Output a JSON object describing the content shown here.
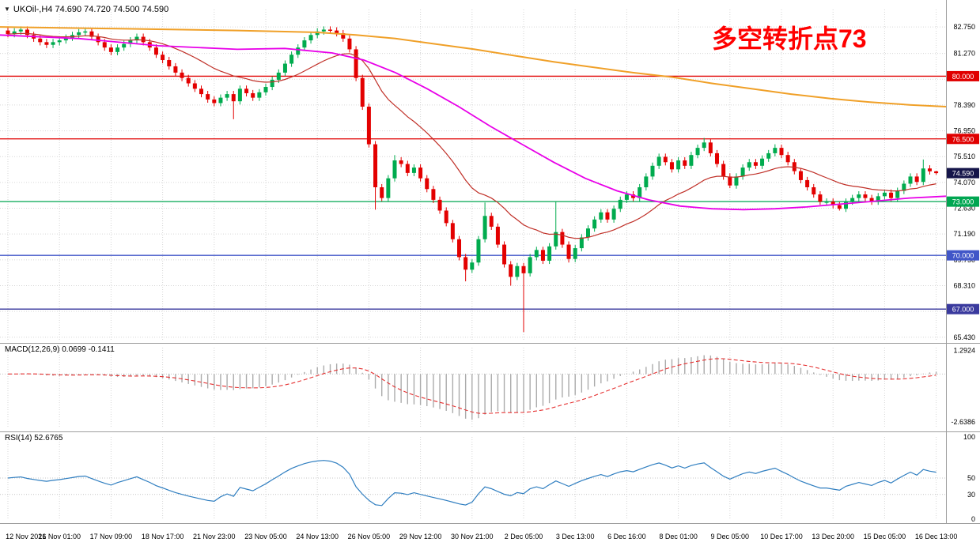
{
  "header": {
    "title": "UKOil-,H4 74.690 74.720 74.500 74.590"
  },
  "annotation": {
    "text": "多空转折点73",
    "color": "#FF0000"
  },
  "colors": {
    "background": "#FFFFFF",
    "grid": "#D6D6D6",
    "up_candle": "#00AB4E",
    "down_candle": "#E30000",
    "ma_fast": "#C03028",
    "ma_mid": "#E800E8",
    "ma_slow": "#F0A028",
    "macd_histogram": "#ABABAB",
    "macd_signal": "#E53030",
    "rsi_line": "#2F7EC0",
    "axis_text": "#000000",
    "separator": "#9E9E9E",
    "current_price_badge": "#15154A",
    "badge_text": "#FFFFFF"
  },
  "chart_data": {
    "type": "candlestick",
    "title": "UKOil- H4",
    "last_quote": {
      "open": "74.690",
      "high": "74.720",
      "low": "74.500",
      "close": "74.590"
    },
    "y_axis": {
      "range": [
        65.2,
        83.9
      ],
      "ticks": [
        {
          "value": 82.75,
          "label": "82.750"
        },
        {
          "value": 81.27,
          "label": "81.270"
        },
        {
          "value": 79.83,
          "label": ""
        },
        {
          "value": 78.39,
          "label": "78.390"
        },
        {
          "value": 76.95,
          "label": "76.950"
        },
        {
          "value": 75.51,
          "label": "75.510"
        },
        {
          "value": 74.07,
          "label": "74.070"
        },
        {
          "value": 72.63,
          "label": "72.630"
        },
        {
          "value": 71.19,
          "label": "71.190"
        },
        {
          "value": 69.75,
          "label": "69.750"
        },
        {
          "value": 68.31,
          "label": "68.310"
        },
        {
          "value": 66.87,
          "label": ""
        },
        {
          "value": 65.43,
          "label": "65.430"
        }
      ]
    },
    "x_axis": {
      "labels": [
        {
          "bar": 0,
          "text": "12 Nov 2021"
        },
        {
          "bar": 8,
          "text": "16 Nov 01:00"
        },
        {
          "bar": 16,
          "text": "17 Nov 09:00"
        },
        {
          "bar": 24,
          "text": "18 Nov 17:00"
        },
        {
          "bar": 32,
          "text": "21 Nov 23:00"
        },
        {
          "bar": 40,
          "text": "23 Nov 05:00"
        },
        {
          "bar": 48,
          "text": "24 Nov 13:00"
        },
        {
          "bar": 56,
          "text": "26 Nov 05:00"
        },
        {
          "bar": 64,
          "text": "29 Nov 12:00"
        },
        {
          "bar": 72,
          "text": "30 Nov 21:00"
        },
        {
          "bar": 80,
          "text": "2 Dec 05:00"
        },
        {
          "bar": 88,
          "text": "3 Dec 13:00"
        },
        {
          "bar": 96,
          "text": "6 Dec 16:00"
        },
        {
          "bar": 104,
          "text": "8 Dec 01:00"
        },
        {
          "bar": 112,
          "text": "9 Dec 05:00"
        },
        {
          "bar": 120,
          "text": "10 Dec 17:00"
        },
        {
          "bar": 128,
          "text": "13 Dec 20:00"
        },
        {
          "bar": 136,
          "text": "15 Dec 05:00"
        },
        {
          "bar": 144,
          "text": "16 Dec 13:00"
        }
      ]
    },
    "first_open": 82.55,
    "closes": [
      82.35,
      82.5,
      82.6,
      82.3,
      82.1,
      81.9,
      81.75,
      81.9,
      82.0,
      82.15,
      82.3,
      82.45,
      82.5,
      82.2,
      81.9,
      81.6,
      81.35,
      81.6,
      81.8,
      82.0,
      82.2,
      81.9,
      81.6,
      81.2,
      80.9,
      80.55,
      80.2,
      79.9,
      79.6,
      79.3,
      79.0,
      78.7,
      78.5,
      78.8,
      79.0,
      78.6,
      79.3,
      79.05,
      78.8,
      79.1,
      79.4,
      79.8,
      80.2,
      80.7,
      81.2,
      81.6,
      82.0,
      82.3,
      82.5,
      82.6,
      82.55,
      82.4,
      82.1,
      81.5,
      79.9,
      78.3,
      76.2,
      73.8,
      73.2,
      74.3,
      75.3,
      75.1,
      74.6,
      74.9,
      74.3,
      73.7,
      73.1,
      72.5,
      71.8,
      70.9,
      69.9,
      69.2,
      69.6,
      70.9,
      72.2,
      71.6,
      70.6,
      69.5,
      68.8,
      69.4,
      69.0,
      69.9,
      70.3,
      69.7,
      70.5,
      71.3,
      70.6,
      69.8,
      70.4,
      71.0,
      71.5,
      72.0,
      72.4,
      72.0,
      72.6,
      73.1,
      73.4,
      73.2,
      73.8,
      74.4,
      75.0,
      75.5,
      75.2,
      74.8,
      75.3,
      75.0,
      75.6,
      76.0,
      76.3,
      75.7,
      75.1,
      74.4,
      73.9,
      74.4,
      74.9,
      75.2,
      75.0,
      75.4,
      75.7,
      76.0,
      75.6,
      75.2,
      74.7,
      74.2,
      73.8,
      73.4,
      73.0,
      73.0,
      72.8,
      72.6,
      73.0,
      73.2,
      73.4,
      73.2,
      73.0,
      73.3,
      73.5,
      73.2,
      73.6,
      74.0,
      74.4,
      74.1,
      74.85,
      74.69,
      74.59
    ],
    "wick_overrides": {
      "35": {
        "low": 77.6
      },
      "57": {
        "low": 72.55
      },
      "60": {
        "high": 75.6
      },
      "71": {
        "low": 68.55
      },
      "74": {
        "high": 72.95
      },
      "78": {
        "low": 68.31
      },
      "80": {
        "low": 65.72
      },
      "85": {
        "high": 73.0
      },
      "87": {
        "low": 69.6
      },
      "108": {
        "high": 76.55
      },
      "112": {
        "low": 73.75
      },
      "119": {
        "high": 76.2
      },
      "129": {
        "low": 72.5
      },
      "142": {
        "high": 75.35
      },
      "144": {
        "high": 74.72,
        "low": 74.5
      }
    },
    "levels": [
      {
        "value": 80.0,
        "label": "80.000",
        "color": "#E00000"
      },
      {
        "value": 76.5,
        "label": "76.500",
        "color": "#E00000"
      },
      {
        "value": 73.0,
        "label": "73.000",
        "color": "#00A651"
      },
      {
        "value": 70.0,
        "label": "70.000",
        "color": "#4156C8"
      },
      {
        "value": 67.0,
        "label": "67.000",
        "color": "#3A3A9E"
      }
    ],
    "current_price": {
      "value": 74.59,
      "label": "74.590"
    },
    "ma_fast_period": 20,
    "ma_overlays": [
      {
        "name": "ma-slow",
        "points": [
          [
            0,
            82.75
          ],
          [
            150,
            82.65
          ],
          [
            300,
            82.55
          ],
          [
            400,
            82.45
          ],
          [
            450,
            82.3
          ],
          [
            500,
            82.1
          ],
          [
            550,
            81.8
          ],
          [
            600,
            81.5
          ],
          [
            650,
            81.15
          ],
          [
            700,
            80.8
          ],
          [
            750,
            80.5
          ],
          [
            800,
            80.2
          ],
          [
            850,
            79.95
          ],
          [
            900,
            79.6
          ],
          [
            950,
            79.3
          ],
          [
            1000,
            79.0
          ],
          [
            1050,
            78.75
          ],
          [
            1100,
            78.55
          ],
          [
            1150,
            78.4
          ],
          [
            1196,
            78.3
          ]
        ]
      },
      {
        "name": "ma-mid",
        "points": [
          [
            0,
            82.3
          ],
          [
            100,
            82.1
          ],
          [
            200,
            81.7
          ],
          [
            300,
            81.5
          ],
          [
            360,
            81.55
          ],
          [
            420,
            81.3
          ],
          [
            460,
            80.9
          ],
          [
            500,
            80.2
          ],
          [
            540,
            79.3
          ],
          [
            580,
            78.3
          ],
          [
            620,
            77.2
          ],
          [
            660,
            76.2
          ],
          [
            700,
            75.2
          ],
          [
            740,
            74.3
          ],
          [
            780,
            73.6
          ],
          [
            820,
            73.1
          ],
          [
            860,
            72.75
          ],
          [
            900,
            72.6
          ],
          [
            940,
            72.55
          ],
          [
            980,
            72.6
          ],
          [
            1020,
            72.7
          ],
          [
            1060,
            72.85
          ],
          [
            1100,
            73.0
          ],
          [
            1150,
            73.2
          ],
          [
            1196,
            73.3
          ]
        ]
      }
    ],
    "indicators": {
      "macd": {
        "label": "MACD(12,26,9) 0.0699 -0.1411",
        "params": [
          12,
          26,
          9
        ],
        "current_macd": 0.0699,
        "current_signal": -0.1411,
        "range": [
          1.45,
          -2.9
        ],
        "y_ticks": [
          {
            "value": 1.2924,
            "label": "1.2924"
          },
          {
            "value": -2.6386,
            "label": "-2.6386"
          }
        ]
      },
      "rsi": {
        "label": "RSI(14) 52.6765",
        "period": 14,
        "current": 52.6765,
        "levels": [
          50,
          30
        ],
        "y_ticks": [
          {
            "value": 100,
            "label": "100"
          },
          {
            "value": 50,
            "label": "50"
          },
          {
            "value": 30,
            "label": "30"
          },
          {
            "value": 0,
            "label": "0"
          }
        ]
      }
    }
  }
}
